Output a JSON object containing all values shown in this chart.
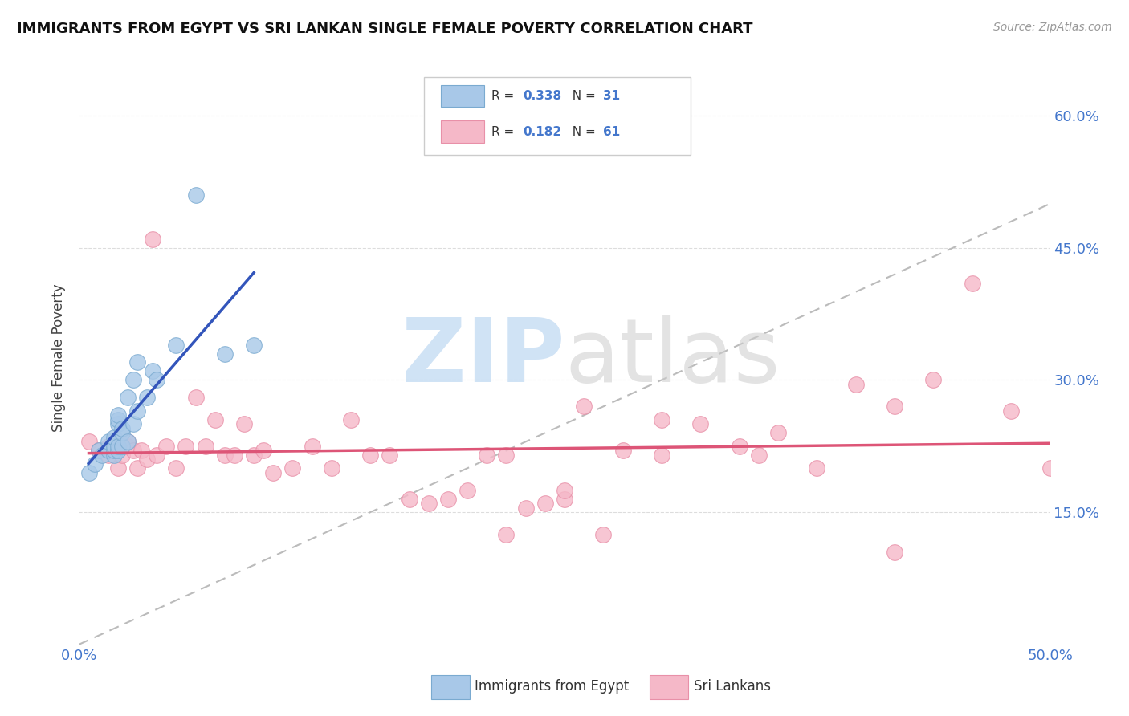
{
  "title": "IMMIGRANTS FROM EGYPT VS SRI LANKAN SINGLE FEMALE POVERTY CORRELATION CHART",
  "source": "Source: ZipAtlas.com",
  "ylabel": "Single Female Poverty",
  "xlim": [
    0.0,
    0.5
  ],
  "ylim": [
    0.0,
    0.65
  ],
  "yticks_right": [
    0.15,
    0.3,
    0.45,
    0.6
  ],
  "ytick_labels_right": [
    "15.0%",
    "30.0%",
    "45.0%",
    "60.0%"
  ],
  "legend_label1": "Immigrants from Egypt",
  "legend_label2": "Sri Lankans",
  "blue_color": "#A8C8E8",
  "pink_color": "#F5B8C8",
  "blue_edge": "#7AAAD0",
  "pink_edge": "#E890A8",
  "blue_line_color": "#3355BB",
  "pink_line_color": "#DD5577",
  "diag_line_color": "#BBBBBB",
  "background_color": "#FFFFFF",
  "grid_color": "#DDDDDD",
  "tick_color": "#4477CC",
  "title_color": "#111111",
  "source_color": "#999999",
  "ylabel_color": "#444444",
  "watermark_zip_color": "#AACCEE",
  "watermark_atlas_color": "#CCCCCC",
  "legend_box_edge": "#CCCCCC",
  "egypt_x": [
    0.005,
    0.008,
    0.01,
    0.012,
    0.015,
    0.015,
    0.018,
    0.018,
    0.018,
    0.018,
    0.02,
    0.02,
    0.02,
    0.02,
    0.02,
    0.022,
    0.022,
    0.022,
    0.025,
    0.025,
    0.028,
    0.028,
    0.03,
    0.03,
    0.035,
    0.038,
    0.04,
    0.05,
    0.06,
    0.075,
    0.09
  ],
  "egypt_y": [
    0.195,
    0.205,
    0.22,
    0.215,
    0.22,
    0.23,
    0.215,
    0.22,
    0.225,
    0.235,
    0.22,
    0.225,
    0.25,
    0.255,
    0.26,
    0.225,
    0.24,
    0.245,
    0.23,
    0.28,
    0.25,
    0.3,
    0.265,
    0.32,
    0.28,
    0.31,
    0.3,
    0.34,
    0.51,
    0.33,
    0.34
  ],
  "srilanka_x": [
    0.005,
    0.01,
    0.015,
    0.015,
    0.018,
    0.02,
    0.022,
    0.025,
    0.025,
    0.028,
    0.03,
    0.032,
    0.035,
    0.038,
    0.04,
    0.045,
    0.05,
    0.055,
    0.06,
    0.065,
    0.07,
    0.075,
    0.08,
    0.085,
    0.09,
    0.095,
    0.1,
    0.11,
    0.12,
    0.13,
    0.14,
    0.15,
    0.16,
    0.17,
    0.18,
    0.19,
    0.2,
    0.21,
    0.22,
    0.23,
    0.24,
    0.25,
    0.26,
    0.27,
    0.28,
    0.3,
    0.32,
    0.34,
    0.36,
    0.38,
    0.4,
    0.42,
    0.44,
    0.46,
    0.48,
    0.5,
    0.22,
    0.25,
    0.3,
    0.35,
    0.42
  ],
  "srilanka_y": [
    0.23,
    0.22,
    0.215,
    0.225,
    0.22,
    0.2,
    0.215,
    0.225,
    0.23,
    0.22,
    0.2,
    0.22,
    0.21,
    0.46,
    0.215,
    0.225,
    0.2,
    0.225,
    0.28,
    0.225,
    0.255,
    0.215,
    0.215,
    0.25,
    0.215,
    0.22,
    0.195,
    0.2,
    0.225,
    0.2,
    0.255,
    0.215,
    0.215,
    0.165,
    0.16,
    0.165,
    0.175,
    0.215,
    0.215,
    0.155,
    0.16,
    0.165,
    0.27,
    0.125,
    0.22,
    0.215,
    0.25,
    0.225,
    0.24,
    0.2,
    0.295,
    0.27,
    0.3,
    0.41,
    0.265,
    0.2,
    0.125,
    0.175,
    0.255,
    0.215,
    0.105
  ]
}
